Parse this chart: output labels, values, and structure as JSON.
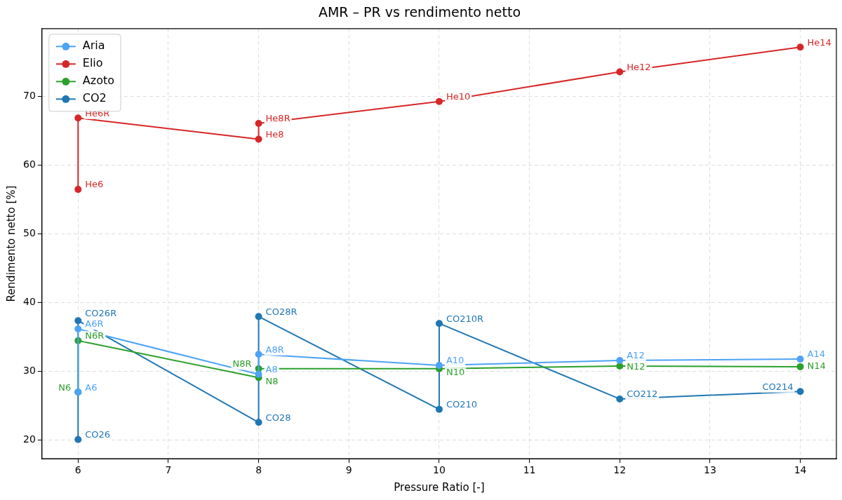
{
  "chart_data": {
    "type": "line",
    "title": "AMR – PR vs rendimento netto",
    "xlabel": "Pressure Ratio [-]",
    "ylabel": "Rendimento netto [%]",
    "xlim": [
      5.6,
      14.4
    ],
    "xticks": [
      6,
      7,
      8,
      9,
      10,
      11,
      12,
      13,
      14
    ],
    "ylim": [
      17.3,
      79.9
    ],
    "yticks": [
      20,
      30,
      40,
      50,
      60,
      70
    ],
    "grid": true,
    "legend": "top left",
    "marker": "circle",
    "line_style": "solid",
    "series": [
      {
        "name": "Aria",
        "color": "#4da3f5",
        "x": [
          6,
          6,
          8,
          8,
          10,
          12,
          14
        ],
        "values": [
          27.0,
          36.2,
          29.6,
          32.5,
          30.9,
          31.6,
          31.8
        ],
        "value_labels": [
          "A6",
          "A6R",
          "A8",
          "A8R",
          "A10",
          "A12",
          "A14"
        ]
      },
      {
        "name": "Elio",
        "color": "#d62728",
        "x": [
          6,
          6,
          8,
          8,
          10,
          12,
          14
        ],
        "values": [
          56.5,
          66.9,
          63.8,
          66.1,
          69.3,
          73.6,
          77.2
        ],
        "value_labels": [
          "He6",
          "He6R",
          "He8",
          "He8R",
          "He10",
          "He12",
          "He14"
        ]
      },
      {
        "name": "Azoto",
        "color": "#2ca02c",
        "x": [
          6,
          6,
          8,
          8,
          10,
          12,
          14
        ],
        "values": [
          27.0,
          34.5,
          29.1,
          30.4,
          30.4,
          30.8,
          30.7
        ],
        "value_labels": [
          "N6",
          "N6R",
          "N8",
          "N8R",
          "N10",
          "N12",
          "N14"
        ]
      },
      {
        "name": "CO2",
        "color": "#1f77b4",
        "x": [
          6,
          6,
          8,
          8,
          10,
          10,
          12,
          14
        ],
        "values": [
          20.1,
          37.4,
          22.6,
          38.0,
          24.5,
          37.0,
          26.0,
          27.1
        ],
        "value_labels": [
          "CO26",
          "CO26R",
          "CO28",
          "CO28R",
          "CO210",
          "CO210R",
          "CO212",
          "CO214"
        ]
      }
    ]
  }
}
